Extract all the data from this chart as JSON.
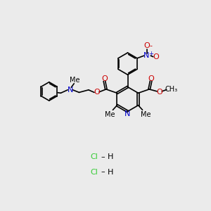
{
  "bg_color": "#ebebeb",
  "bond_color": "#000000",
  "N_color": "#0000cc",
  "O_color": "#cc0000",
  "Cl_color": "#33cc33",
  "figsize": [
    3.0,
    3.0
  ],
  "dpi": 100,
  "xlim": [
    0,
    10
  ],
  "ylim": [
    0,
    10
  ],
  "lw": 1.2,
  "fs": 8.0,
  "fs_small": 7.0,
  "HCl1": [
    4.7,
    2.55
  ],
  "HCl2": [
    4.7,
    1.85
  ]
}
